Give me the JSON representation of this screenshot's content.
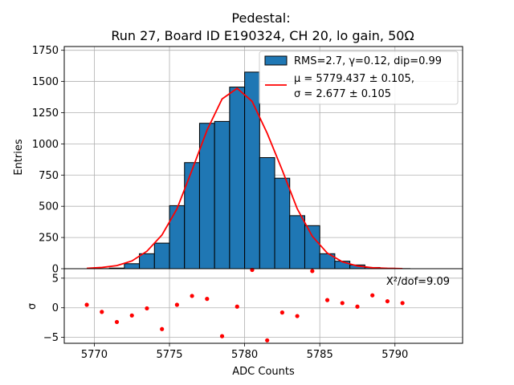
{
  "chart_data": [
    {
      "type": "bar",
      "title_line1": "Pedestal:",
      "title_line2": "Run 27, Board ID E190324, CH 20, lo gain, 50Ω",
      "ylabel": "Entries",
      "xlim": [
        5768,
        5794.5
      ],
      "ylim": [
        0,
        1780
      ],
      "yticks": [
        0,
        250,
        500,
        750,
        1000,
        1250,
        1500,
        1750
      ],
      "grid": true,
      "bins": [
        {
          "x": 5769,
          "count": 0
        },
        {
          "x": 5770,
          "count": 1
        },
        {
          "x": 5771,
          "count": 5
        },
        {
          "x": 5772,
          "count": 40
        },
        {
          "x": 5773,
          "count": 120
        },
        {
          "x": 5774,
          "count": 205
        },
        {
          "x": 5775,
          "count": 505
        },
        {
          "x": 5776,
          "count": 850
        },
        {
          "x": 5777,
          "count": 1165
        },
        {
          "x": 5778,
          "count": 1180
        },
        {
          "x": 5779,
          "count": 1455
        },
        {
          "x": 5780,
          "count": 1575
        },
        {
          "x": 5781,
          "count": 890
        },
        {
          "x": 5782,
          "count": 725
        },
        {
          "x": 5783,
          "count": 425
        },
        {
          "x": 5784,
          "count": 345
        },
        {
          "x": 5785,
          "count": 120
        },
        {
          "x": 5786,
          "count": 60
        },
        {
          "x": 5787,
          "count": 30
        },
        {
          "x": 5788,
          "count": 10
        },
        {
          "x": 5789,
          "count": 4
        },
        {
          "x": 5790,
          "count": 1
        }
      ],
      "fit_curve": {
        "x": [
          5769.5,
          5770.5,
          5771.5,
          5772.5,
          5773.5,
          5774.5,
          5775.5,
          5776.5,
          5777.5,
          5778.5,
          5779.5,
          5780.5,
          5781.5,
          5782.5,
          5783.5,
          5784.5,
          5785.5,
          5786.5,
          5787.5,
          5788.5,
          5789.5,
          5790.5
        ],
        "y": [
          3,
          10,
          25,
          62,
          140,
          270,
          480,
          790,
          1110,
          1360,
          1445,
          1340,
          1085,
          790,
          480,
          260,
          125,
          55,
          22,
          8,
          3,
          1
        ],
        "color": "#ff0000"
      },
      "legend": {
        "placement": "top-right",
        "entries": [
          {
            "label": "RMS=2.7, γ=0.12, dip=0.99",
            "kind": "patch",
            "color": "#1f77b4"
          },
          {
            "label_line1": "μ = 5779.437 ± 0.105,",
            "label_line2": "σ = 2.677 ± 0.105",
            "kind": "line",
            "color": "#ff0000"
          }
        ]
      },
      "bar_color": "#1f77b4"
    },
    {
      "type": "scatter",
      "xlabel": "ADC Counts",
      "ylabel": "σ",
      "ylim": [
        -6,
        6.6
      ],
      "yticks": [
        -5,
        0,
        5
      ],
      "xticks": [
        5770,
        5775,
        5780,
        5785,
        5790
      ],
      "annotation": "X²/dof=9.09",
      "grid": true,
      "point_color": "#ff0000",
      "points": [
        {
          "x": 5769.5,
          "y": 0.5
        },
        {
          "x": 5770.5,
          "y": -0.7
        },
        {
          "x": 5771.5,
          "y": -2.4
        },
        {
          "x": 5772.5,
          "y": -1.3
        },
        {
          "x": 5773.5,
          "y": -0.1
        },
        {
          "x": 5774.5,
          "y": -3.6
        },
        {
          "x": 5775.5,
          "y": 0.5
        },
        {
          "x": 5776.5,
          "y": 2.0
        },
        {
          "x": 5777.5,
          "y": 1.5
        },
        {
          "x": 5778.5,
          "y": -4.8
        },
        {
          "x": 5779.5,
          "y": 0.2
        },
        {
          "x": 5780.5,
          "y": 6.4
        },
        {
          "x": 5781.5,
          "y": -5.5
        },
        {
          "x": 5782.5,
          "y": -0.8
        },
        {
          "x": 5783.5,
          "y": -1.4
        },
        {
          "x": 5784.5,
          "y": 6.2
        },
        {
          "x": 5785.5,
          "y": 1.3
        },
        {
          "x": 5786.5,
          "y": 0.8
        },
        {
          "x": 5787.5,
          "y": 0.2
        },
        {
          "x": 5788.5,
          "y": 2.1
        },
        {
          "x": 5789.5,
          "y": 1.1
        },
        {
          "x": 5790.5,
          "y": 0.8
        }
      ]
    }
  ]
}
